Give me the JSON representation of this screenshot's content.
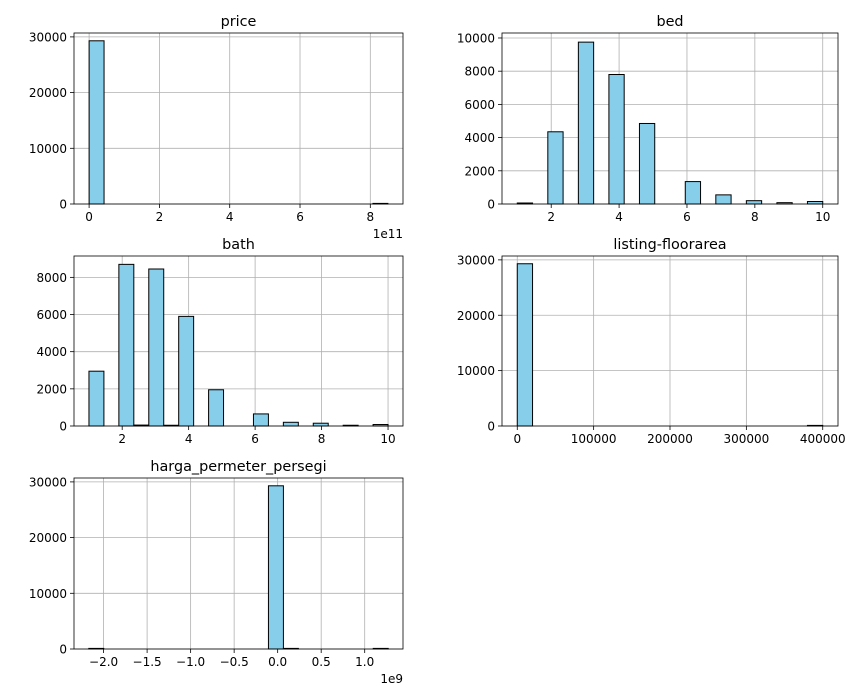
{
  "style": {
    "bar_fill": "#87ceeb",
    "bar_edge": "#000000",
    "grid_color": "#b0b0b0",
    "axis_color": "#000000",
    "background": "#ffffff"
  },
  "chart_data": [
    {
      "type": "bar",
      "title": "price",
      "xlabel": "",
      "ylabel": "",
      "grid": true,
      "xlim": [
        -0.43,
        8.93
      ],
      "ylim": [
        0,
        30700
      ],
      "xticks": [
        0,
        2,
        4,
        6,
        8
      ],
      "xtick_labels": [
        "0",
        "2",
        "4",
        "6",
        "8"
      ],
      "yticks": [
        0,
        10000,
        20000,
        30000
      ],
      "ytick_labels": [
        "0",
        "10000",
        "20000",
        "30000"
      ],
      "x_offset_label": "1e11",
      "bins": [
        {
          "x0": 0.0,
          "x1": 0.425,
          "count": 29300
        },
        {
          "x0": 0.425,
          "x1": 0.85,
          "count": 0
        },
        {
          "x0": 0.85,
          "x1": 1.275,
          "count": 0
        },
        {
          "x0": 1.275,
          "x1": 1.7,
          "count": 0
        },
        {
          "x0": 1.7,
          "x1": 2.125,
          "count": 0
        },
        {
          "x0": 2.125,
          "x1": 2.55,
          "count": 0
        },
        {
          "x0": 2.55,
          "x1": 2.975,
          "count": 0
        },
        {
          "x0": 2.975,
          "x1": 3.4,
          "count": 0
        },
        {
          "x0": 3.4,
          "x1": 3.825,
          "count": 0
        },
        {
          "x0": 3.825,
          "x1": 4.25,
          "count": 0
        },
        {
          "x0": 4.25,
          "x1": 4.675,
          "count": 0
        },
        {
          "x0": 4.675,
          "x1": 5.1,
          "count": 0
        },
        {
          "x0": 5.1,
          "x1": 5.525,
          "count": 0
        },
        {
          "x0": 5.525,
          "x1": 5.95,
          "count": 0
        },
        {
          "x0": 5.95,
          "x1": 6.375,
          "count": 0
        },
        {
          "x0": 6.375,
          "x1": 6.8,
          "count": 0
        },
        {
          "x0": 6.8,
          "x1": 7.225,
          "count": 0
        },
        {
          "x0": 7.225,
          "x1": 7.65,
          "count": 0
        },
        {
          "x0": 7.65,
          "x1": 8.075,
          "count": 0
        },
        {
          "x0": 8.075,
          "x1": 8.5,
          "count": 1
        }
      ]
    },
    {
      "type": "bar",
      "title": "bed",
      "xlabel": "",
      "ylabel": "",
      "grid": true,
      "xlim": [
        0.55,
        10.45
      ],
      "ylim": [
        0,
        10300
      ],
      "xticks": [
        2,
        4,
        6,
        8,
        10
      ],
      "xtick_labels": [
        "2",
        "4",
        "6",
        "8",
        "10"
      ],
      "yticks": [
        0,
        2000,
        4000,
        6000,
        8000,
        10000
      ],
      "ytick_labels": [
        "0",
        "2000",
        "4000",
        "6000",
        "8000",
        "10000"
      ],
      "x_offset_label": "",
      "bins": [
        {
          "x0": 1.0,
          "x1": 1.45,
          "count": 60
        },
        {
          "x0": 1.45,
          "x1": 1.9,
          "count": 0
        },
        {
          "x0": 1.9,
          "x1": 2.35,
          "count": 4350
        },
        {
          "x0": 2.35,
          "x1": 2.8,
          "count": 0
        },
        {
          "x0": 2.8,
          "x1": 3.25,
          "count": 9750
        },
        {
          "x0": 3.25,
          "x1": 3.7,
          "count": 0
        },
        {
          "x0": 3.7,
          "x1": 4.15,
          "count": 7800
        },
        {
          "x0": 4.15,
          "x1": 4.6,
          "count": 0
        },
        {
          "x0": 4.6,
          "x1": 5.05,
          "count": 4850
        },
        {
          "x0": 5.05,
          "x1": 5.5,
          "count": 0
        },
        {
          "x0": 5.5,
          "x1": 5.95,
          "count": 0
        },
        {
          "x0": 5.95,
          "x1": 6.4,
          "count": 1350
        },
        {
          "x0": 6.4,
          "x1": 6.85,
          "count": 0
        },
        {
          "x0": 6.85,
          "x1": 7.3,
          "count": 550
        },
        {
          "x0": 7.3,
          "x1": 7.75,
          "count": 0
        },
        {
          "x0": 7.75,
          "x1": 8.2,
          "count": 200
        },
        {
          "x0": 8.2,
          "x1": 8.65,
          "count": 0
        },
        {
          "x0": 8.65,
          "x1": 9.1,
          "count": 80
        },
        {
          "x0": 9.1,
          "x1": 9.55,
          "count": 0
        },
        {
          "x0": 9.55,
          "x1": 10.0,
          "count": 150
        }
      ]
    },
    {
      "type": "bar",
      "title": "bath",
      "xlabel": "",
      "ylabel": "",
      "grid": true,
      "xlim": [
        0.55,
        10.45
      ],
      "ylim": [
        0,
        9150
      ],
      "xticks": [
        2,
        4,
        6,
        8,
        10
      ],
      "xtick_labels": [
        "2",
        "4",
        "6",
        "8",
        "10"
      ],
      "yticks": [
        0,
        2000,
        4000,
        6000,
        8000
      ],
      "ytick_labels": [
        "0",
        "2000",
        "4000",
        "6000",
        "8000"
      ],
      "x_offset_label": "",
      "bins": [
        {
          "x0": 1.0,
          "x1": 1.45,
          "count": 2950
        },
        {
          "x0": 1.45,
          "x1": 1.9,
          "count": 0
        },
        {
          "x0": 1.9,
          "x1": 2.35,
          "count": 8700
        },
        {
          "x0": 2.35,
          "x1": 2.8,
          "count": 50
        },
        {
          "x0": 2.8,
          "x1": 3.25,
          "count": 8450
        },
        {
          "x0": 3.25,
          "x1": 3.7,
          "count": 40
        },
        {
          "x0": 3.7,
          "x1": 4.15,
          "count": 5900
        },
        {
          "x0": 4.15,
          "x1": 4.6,
          "count": 0
        },
        {
          "x0": 4.6,
          "x1": 5.05,
          "count": 1950
        },
        {
          "x0": 5.05,
          "x1": 5.5,
          "count": 0
        },
        {
          "x0": 5.5,
          "x1": 5.95,
          "count": 0
        },
        {
          "x0": 5.95,
          "x1": 6.4,
          "count": 650
        },
        {
          "x0": 6.4,
          "x1": 6.85,
          "count": 0
        },
        {
          "x0": 6.85,
          "x1": 7.3,
          "count": 200
        },
        {
          "x0": 7.3,
          "x1": 7.75,
          "count": 0
        },
        {
          "x0": 7.75,
          "x1": 8.2,
          "count": 150
        },
        {
          "x0": 8.2,
          "x1": 8.65,
          "count": 0
        },
        {
          "x0": 8.65,
          "x1": 9.1,
          "count": 40
        },
        {
          "x0": 9.1,
          "x1": 9.55,
          "count": 0
        },
        {
          "x0": 9.55,
          "x1": 10.0,
          "count": 80
        }
      ]
    },
    {
      "type": "bar",
      "title": "listing-floorarea",
      "xlabel": "",
      "ylabel": "",
      "grid": true,
      "xlim": [
        -20000,
        420000
      ],
      "ylim": [
        0,
        30700
      ],
      "xticks": [
        0,
        100000,
        200000,
        300000,
        400000
      ],
      "xtick_labels": [
        "0",
        "100000",
        "200000",
        "300000",
        "400000"
      ],
      "yticks": [
        0,
        10000,
        20000,
        30000
      ],
      "ytick_labels": [
        "0",
        "10000",
        "20000",
        "30000"
      ],
      "x_offset_label": "",
      "bins": [
        {
          "x0": 0,
          "x1": 20000,
          "count": 29300
        },
        {
          "x0": 20000,
          "x1": 40000,
          "count": 0
        },
        {
          "x0": 40000,
          "x1": 60000,
          "count": 0
        },
        {
          "x0": 60000,
          "x1": 80000,
          "count": 0
        },
        {
          "x0": 80000,
          "x1": 100000,
          "count": 0
        },
        {
          "x0": 100000,
          "x1": 120000,
          "count": 0
        },
        {
          "x0": 120000,
          "x1": 140000,
          "count": 0
        },
        {
          "x0": 140000,
          "x1": 160000,
          "count": 0
        },
        {
          "x0": 160000,
          "x1": 180000,
          "count": 0
        },
        {
          "x0": 180000,
          "x1": 200000,
          "count": 0
        },
        {
          "x0": 200000,
          "x1": 220000,
          "count": 0
        },
        {
          "x0": 220000,
          "x1": 240000,
          "count": 0
        },
        {
          "x0": 240000,
          "x1": 260000,
          "count": 0
        },
        {
          "x0": 260000,
          "x1": 280000,
          "count": 0
        },
        {
          "x0": 280000,
          "x1": 300000,
          "count": 0
        },
        {
          "x0": 300000,
          "x1": 320000,
          "count": 0
        },
        {
          "x0": 320000,
          "x1": 340000,
          "count": 0
        },
        {
          "x0": 340000,
          "x1": 360000,
          "count": 0
        },
        {
          "x0": 360000,
          "x1": 380000,
          "count": 0
        },
        {
          "x0": 380000,
          "x1": 400000,
          "count": 1
        }
      ]
    },
    {
      "type": "bar",
      "title": "harga_permeter_persegi",
      "xlabel": "",
      "ylabel": "",
      "grid": true,
      "xlim": [
        -2.34,
        1.44
      ],
      "ylim": [
        0,
        30700
      ],
      "xticks": [
        -2.0,
        -1.5,
        -1.0,
        -0.5,
        0.0,
        0.5,
        1.0
      ],
      "xtick_labels": [
        "−2.0",
        "−1.5",
        "−1.0",
        "−0.5",
        "0.0",
        "0.5",
        "1.0"
      ],
      "yticks": [
        0,
        10000,
        20000,
        30000
      ],
      "ytick_labels": [
        "0",
        "10000",
        "20000",
        "30000"
      ],
      "x_offset_label": "1e9",
      "bins": [
        {
          "x0": -2.17,
          "x1": -1.998,
          "count": 1
        },
        {
          "x0": -1.998,
          "x1": -1.826,
          "count": 0
        },
        {
          "x0": -1.826,
          "x1": -1.654,
          "count": 0
        },
        {
          "x0": -1.654,
          "x1": -1.482,
          "count": 0
        },
        {
          "x0": -1.482,
          "x1": -1.31,
          "count": 0
        },
        {
          "x0": -1.31,
          "x1": -1.138,
          "count": 0
        },
        {
          "x0": -1.138,
          "x1": -0.966,
          "count": 0
        },
        {
          "x0": -0.966,
          "x1": -0.794,
          "count": 0
        },
        {
          "x0": -0.794,
          "x1": -0.622,
          "count": 0
        },
        {
          "x0": -0.622,
          "x1": -0.45,
          "count": 0
        },
        {
          "x0": -0.45,
          "x1": -0.278,
          "count": 0
        },
        {
          "x0": -0.278,
          "x1": -0.106,
          "count": 0
        },
        {
          "x0": -0.106,
          "x1": 0.066,
          "count": 29300
        },
        {
          "x0": 0.066,
          "x1": 0.238,
          "count": 5
        },
        {
          "x0": 0.238,
          "x1": 0.41,
          "count": 0
        },
        {
          "x0": 0.41,
          "x1": 0.582,
          "count": 0
        },
        {
          "x0": 0.582,
          "x1": 0.754,
          "count": 0
        },
        {
          "x0": 0.754,
          "x1": 0.926,
          "count": 0
        },
        {
          "x0": 0.926,
          "x1": 1.098,
          "count": 0
        },
        {
          "x0": 1.098,
          "x1": 1.27,
          "count": 1
        }
      ]
    }
  ]
}
